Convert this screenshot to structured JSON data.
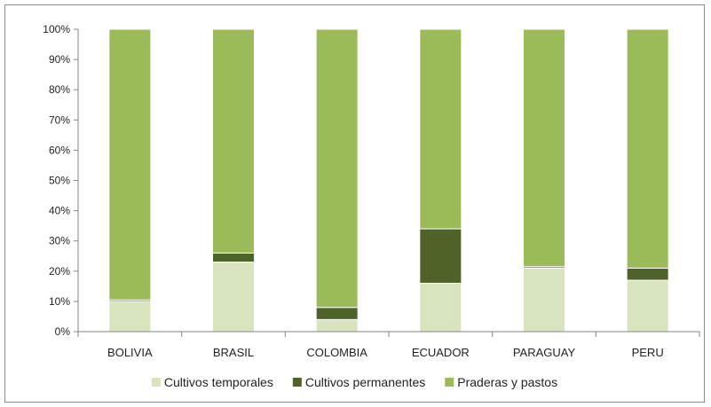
{
  "chart_data": {
    "type": "bar",
    "stacked": "100%",
    "categories": [
      "BOLIVIA",
      "BRASIL",
      "COLOMBIA",
      "ECUADOR",
      "PARAGUAY",
      "PERU"
    ],
    "series": [
      {
        "name": "Cultivos temporales",
        "color": "#d7e4bd",
        "values": [
          10,
          23,
          4,
          16,
          21,
          17
        ]
      },
      {
        "name": "Cultivos permanentes",
        "color": "#4f6228",
        "values": [
          0.5,
          3,
          4,
          18,
          0.5,
          4
        ]
      },
      {
        "name": "Praderas y pastos",
        "color": "#9bbb59",
        "values": [
          89.5,
          74,
          92,
          66,
          78.5,
          79
        ]
      }
    ],
    "ylim": [
      0,
      100
    ],
    "yticks": [
      "0%",
      "10%",
      "20%",
      "30%",
      "40%",
      "50%",
      "60%",
      "70%",
      "80%",
      "90%",
      "100%"
    ],
    "grid": false,
    "legend_position": "bottom"
  }
}
